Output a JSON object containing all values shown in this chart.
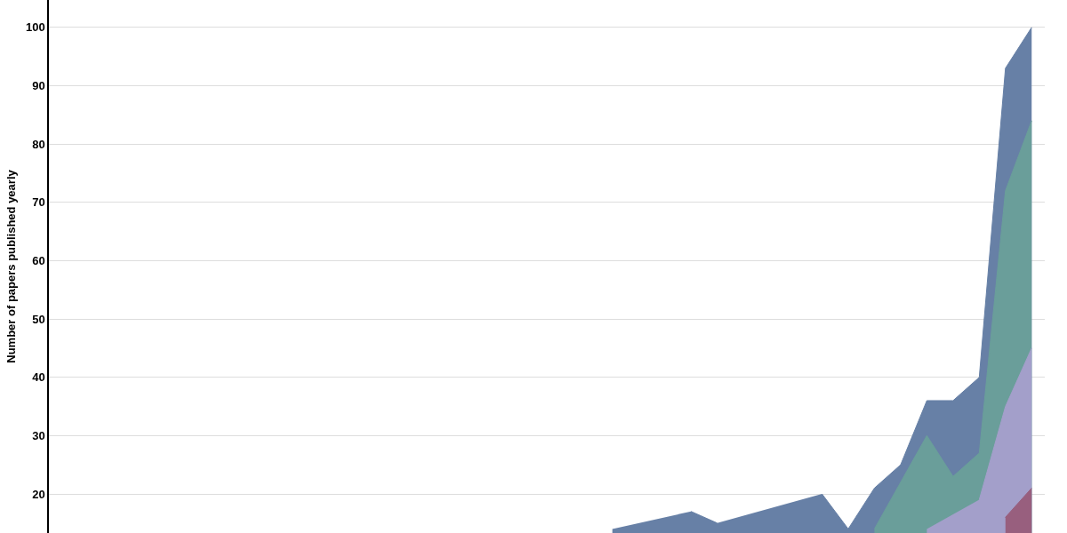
{
  "chart_data": {
    "type": "area",
    "ylabel": "Number of papers published yearly",
    "categories": [
      null,
      null,
      null,
      null,
      null,
      null,
      null,
      null,
      null,
      null,
      null,
      null,
      null,
      null,
      null,
      null,
      null,
      null,
      null,
      null,
      null,
      null,
      null,
      null,
      null,
      null,
      null,
      null,
      null,
      null,
      null,
      null,
      null,
      null,
      null,
      null,
      null,
      null
    ],
    "series": [
      {
        "color": "#6780a6",
        "values": [
          null,
          null,
          null,
          null,
          null,
          null,
          null,
          null,
          null,
          null,
          null,
          null,
          null,
          null,
          null,
          null,
          null,
          null,
          null,
          null,
          null,
          14,
          null,
          null,
          17,
          15,
          null,
          null,
          null,
          20,
          14,
          21,
          25,
          36,
          36,
          40,
          93,
          100
        ]
      },
      {
        "color": "#6a9e9a",
        "values": [
          null,
          null,
          null,
          null,
          null,
          null,
          null,
          null,
          null,
          null,
          null,
          null,
          null,
          null,
          null,
          null,
          null,
          null,
          null,
          null,
          null,
          null,
          null,
          null,
          null,
          null,
          null,
          null,
          null,
          null,
          null,
          14,
          22,
          30,
          23,
          27,
          72,
          84
        ]
      },
      {
        "color": "#a39fca",
        "values": [
          null,
          null,
          null,
          null,
          null,
          null,
          null,
          null,
          null,
          null,
          null,
          null,
          null,
          null,
          null,
          null,
          null,
          null,
          null,
          null,
          null,
          null,
          null,
          null,
          null,
          null,
          null,
          null,
          null,
          null,
          null,
          null,
          null,
          14,
          null,
          19,
          35,
          45
        ]
      },
      {
        "color": "#985f7e",
        "values": [
          null,
          null,
          null,
          null,
          null,
          null,
          null,
          null,
          null,
          null,
          null,
          null,
          null,
          null,
          null,
          null,
          null,
          null,
          null,
          null,
          null,
          null,
          null,
          null,
          null,
          null,
          null,
          null,
          null,
          null,
          null,
          null,
          null,
          null,
          null,
          null,
          16,
          21
        ]
      }
    ],
    "ylim": [
      13.3,
      104.7
    ],
    "yticks": [
      20,
      30,
      40,
      50,
      60,
      70,
      80,
      90,
      100
    ],
    "grid": "y",
    "legend": false,
    "tick_labels": "y"
  }
}
